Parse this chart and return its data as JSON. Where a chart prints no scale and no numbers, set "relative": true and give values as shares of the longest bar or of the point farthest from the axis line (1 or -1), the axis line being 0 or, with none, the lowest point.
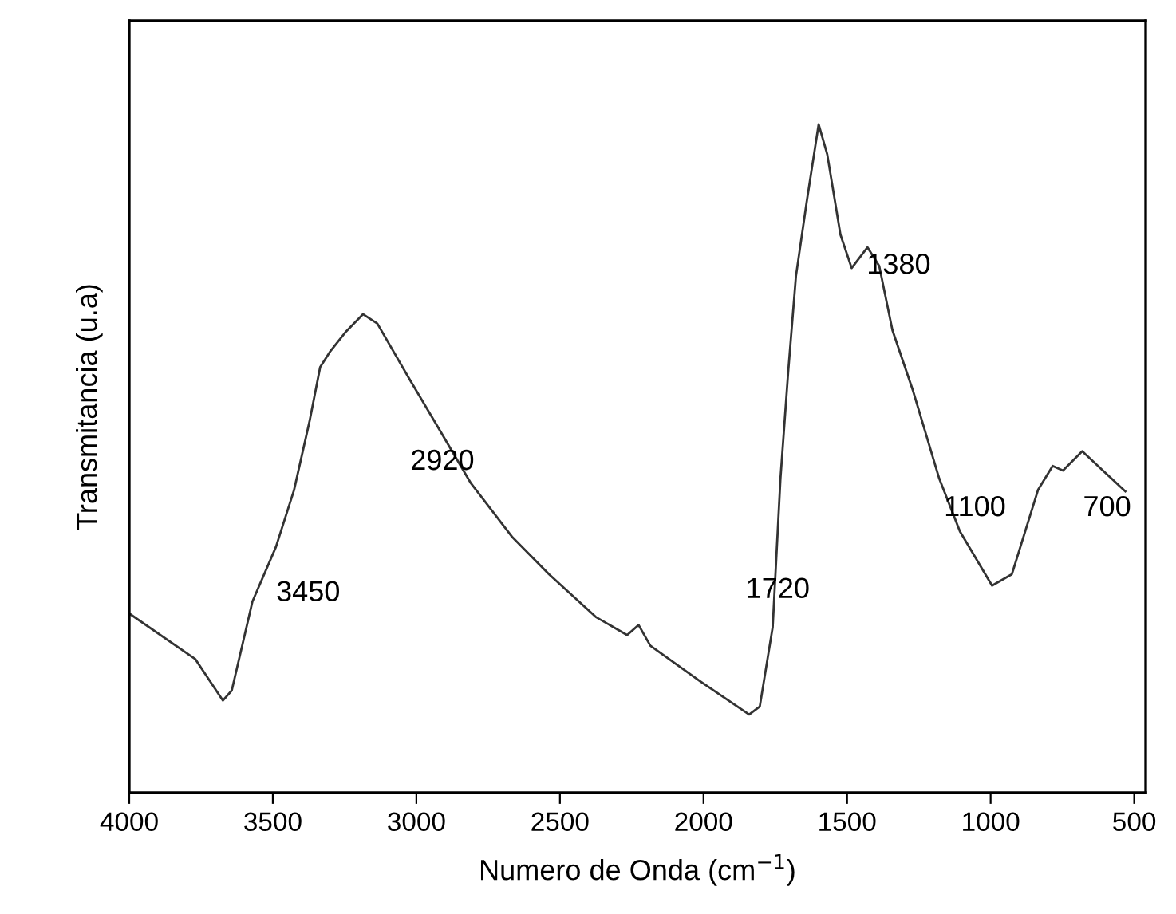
{
  "chart_data": {
    "type": "line",
    "relative": true,
    "xlabel": "Numero de Onda (cm$^{−1}$)",
    "ylabel": "Transmitancia (u.a)",
    "xlim": [
      4000,
      460
    ],
    "xticks": [
      4000,
      3500,
      3000,
      2500,
      2000,
      1500,
      1000,
      500
    ],
    "tick_labels": "x",
    "grid": false,
    "marker": "none",
    "line_style": "solid",
    "series": [
      {
        "color": "#333333",
        "x": [
          3996,
          3770,
          3674,
          3643,
          3571,
          3489,
          3426,
          3371,
          3335,
          3299,
          3245,
          3186,
          3136,
          3027,
          2918,
          2810,
          2665,
          2538,
          2375,
          2266,
          2226,
          2185,
          2012,
          1841,
          1804,
          1759,
          1732,
          1705,
          1678,
          1641,
          1599,
          1569,
          1523,
          1484,
          1429,
          1388,
          1342,
          1270,
          1179,
          1107,
          995,
          926,
          835,
          784,
          748,
          681,
          609,
          531
        ],
        "values": [
          0.267,
          0.2,
          0.138,
          0.153,
          0.286,
          0.368,
          0.453,
          0.558,
          0.637,
          0.661,
          0.69,
          0.716,
          0.702,
          0.621,
          0.542,
          0.463,
          0.382,
          0.327,
          0.263,
          0.236,
          0.251,
          0.22,
          0.167,
          0.117,
          0.129,
          0.248,
          0.47,
          0.63,
          0.773,
          0.883,
          1.0,
          0.955,
          0.835,
          0.785,
          0.816,
          0.788,
          0.692,
          0.601,
          0.47,
          0.391,
          0.31,
          0.327,
          0.453,
          0.489,
          0.482,
          0.511,
          0.482,
          0.451
        ]
      }
    ],
    "annotations": [
      "3450",
      "2920",
      "1720",
      "1380",
      "1100",
      "700"
    ]
  }
}
